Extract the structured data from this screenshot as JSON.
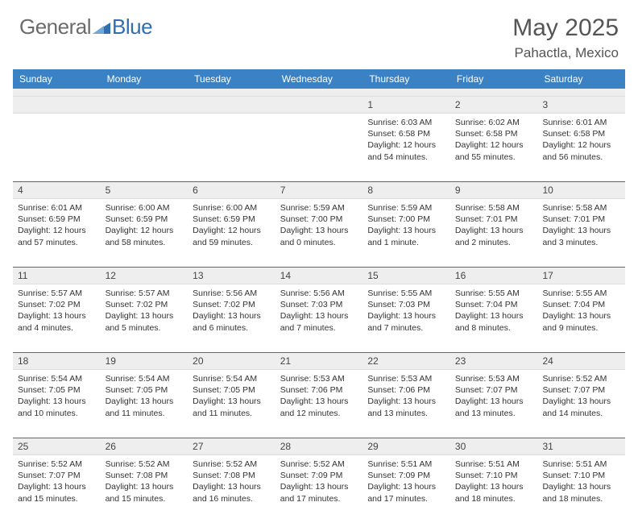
{
  "brand": {
    "part1": "General",
    "part2": "Blue"
  },
  "title": "May 2025",
  "location": "Pahactla, Mexico",
  "weekdays": [
    "Sunday",
    "Monday",
    "Tuesday",
    "Wednesday",
    "Thursday",
    "Friday",
    "Saturday"
  ],
  "colors": {
    "header_bar": "#3b82c4",
    "row_bg": "#eeeeee",
    "row_border_top": "#3b6fa0",
    "text": "#333333",
    "title_text": "#555555",
    "logo_gray": "#6b6b6b",
    "logo_blue": "#2f6fb0"
  },
  "weeks": [
    {
      "nums": [
        "",
        "",
        "",
        "",
        "1",
        "2",
        "3"
      ],
      "cells": [
        null,
        null,
        null,
        null,
        {
          "sunrise": "Sunrise: 6:03 AM",
          "sunset": "Sunset: 6:58 PM",
          "daylight": "Daylight: 12 hours and 54 minutes."
        },
        {
          "sunrise": "Sunrise: 6:02 AM",
          "sunset": "Sunset: 6:58 PM",
          "daylight": "Daylight: 12 hours and 55 minutes."
        },
        {
          "sunrise": "Sunrise: 6:01 AM",
          "sunset": "Sunset: 6:58 PM",
          "daylight": "Daylight: 12 hours and 56 minutes."
        }
      ]
    },
    {
      "nums": [
        "4",
        "5",
        "6",
        "7",
        "8",
        "9",
        "10"
      ],
      "cells": [
        {
          "sunrise": "Sunrise: 6:01 AM",
          "sunset": "Sunset: 6:59 PM",
          "daylight": "Daylight: 12 hours and 57 minutes."
        },
        {
          "sunrise": "Sunrise: 6:00 AM",
          "sunset": "Sunset: 6:59 PM",
          "daylight": "Daylight: 12 hours and 58 minutes."
        },
        {
          "sunrise": "Sunrise: 6:00 AM",
          "sunset": "Sunset: 6:59 PM",
          "daylight": "Daylight: 12 hours and 59 minutes."
        },
        {
          "sunrise": "Sunrise: 5:59 AM",
          "sunset": "Sunset: 7:00 PM",
          "daylight": "Daylight: 13 hours and 0 minutes."
        },
        {
          "sunrise": "Sunrise: 5:59 AM",
          "sunset": "Sunset: 7:00 PM",
          "daylight": "Daylight: 13 hours and 1 minute."
        },
        {
          "sunrise": "Sunrise: 5:58 AM",
          "sunset": "Sunset: 7:01 PM",
          "daylight": "Daylight: 13 hours and 2 minutes."
        },
        {
          "sunrise": "Sunrise: 5:58 AM",
          "sunset": "Sunset: 7:01 PM",
          "daylight": "Daylight: 13 hours and 3 minutes."
        }
      ]
    },
    {
      "nums": [
        "11",
        "12",
        "13",
        "14",
        "15",
        "16",
        "17"
      ],
      "cells": [
        {
          "sunrise": "Sunrise: 5:57 AM",
          "sunset": "Sunset: 7:02 PM",
          "daylight": "Daylight: 13 hours and 4 minutes."
        },
        {
          "sunrise": "Sunrise: 5:57 AM",
          "sunset": "Sunset: 7:02 PM",
          "daylight": "Daylight: 13 hours and 5 minutes."
        },
        {
          "sunrise": "Sunrise: 5:56 AM",
          "sunset": "Sunset: 7:02 PM",
          "daylight": "Daylight: 13 hours and 6 minutes."
        },
        {
          "sunrise": "Sunrise: 5:56 AM",
          "sunset": "Sunset: 7:03 PM",
          "daylight": "Daylight: 13 hours and 7 minutes."
        },
        {
          "sunrise": "Sunrise: 5:55 AM",
          "sunset": "Sunset: 7:03 PM",
          "daylight": "Daylight: 13 hours and 7 minutes."
        },
        {
          "sunrise": "Sunrise: 5:55 AM",
          "sunset": "Sunset: 7:04 PM",
          "daylight": "Daylight: 13 hours and 8 minutes."
        },
        {
          "sunrise": "Sunrise: 5:55 AM",
          "sunset": "Sunset: 7:04 PM",
          "daylight": "Daylight: 13 hours and 9 minutes."
        }
      ]
    },
    {
      "nums": [
        "18",
        "19",
        "20",
        "21",
        "22",
        "23",
        "24"
      ],
      "cells": [
        {
          "sunrise": "Sunrise: 5:54 AM",
          "sunset": "Sunset: 7:05 PM",
          "daylight": "Daylight: 13 hours and 10 minutes."
        },
        {
          "sunrise": "Sunrise: 5:54 AM",
          "sunset": "Sunset: 7:05 PM",
          "daylight": "Daylight: 13 hours and 11 minutes."
        },
        {
          "sunrise": "Sunrise: 5:54 AM",
          "sunset": "Sunset: 7:05 PM",
          "daylight": "Daylight: 13 hours and 11 minutes."
        },
        {
          "sunrise": "Sunrise: 5:53 AM",
          "sunset": "Sunset: 7:06 PM",
          "daylight": "Daylight: 13 hours and 12 minutes."
        },
        {
          "sunrise": "Sunrise: 5:53 AM",
          "sunset": "Sunset: 7:06 PM",
          "daylight": "Daylight: 13 hours and 13 minutes."
        },
        {
          "sunrise": "Sunrise: 5:53 AM",
          "sunset": "Sunset: 7:07 PM",
          "daylight": "Daylight: 13 hours and 13 minutes."
        },
        {
          "sunrise": "Sunrise: 5:52 AM",
          "sunset": "Sunset: 7:07 PM",
          "daylight": "Daylight: 13 hours and 14 minutes."
        }
      ]
    },
    {
      "nums": [
        "25",
        "26",
        "27",
        "28",
        "29",
        "30",
        "31"
      ],
      "cells": [
        {
          "sunrise": "Sunrise: 5:52 AM",
          "sunset": "Sunset: 7:07 PM",
          "daylight": "Daylight: 13 hours and 15 minutes."
        },
        {
          "sunrise": "Sunrise: 5:52 AM",
          "sunset": "Sunset: 7:08 PM",
          "daylight": "Daylight: 13 hours and 15 minutes."
        },
        {
          "sunrise": "Sunrise: 5:52 AM",
          "sunset": "Sunset: 7:08 PM",
          "daylight": "Daylight: 13 hours and 16 minutes."
        },
        {
          "sunrise": "Sunrise: 5:52 AM",
          "sunset": "Sunset: 7:09 PM",
          "daylight": "Daylight: 13 hours and 17 minutes."
        },
        {
          "sunrise": "Sunrise: 5:51 AM",
          "sunset": "Sunset: 7:09 PM",
          "daylight": "Daylight: 13 hours and 17 minutes."
        },
        {
          "sunrise": "Sunrise: 5:51 AM",
          "sunset": "Sunset: 7:10 PM",
          "daylight": "Daylight: 13 hours and 18 minutes."
        },
        {
          "sunrise": "Sunrise: 5:51 AM",
          "sunset": "Sunset: 7:10 PM",
          "daylight": "Daylight: 13 hours and 18 minutes."
        }
      ]
    }
  ]
}
